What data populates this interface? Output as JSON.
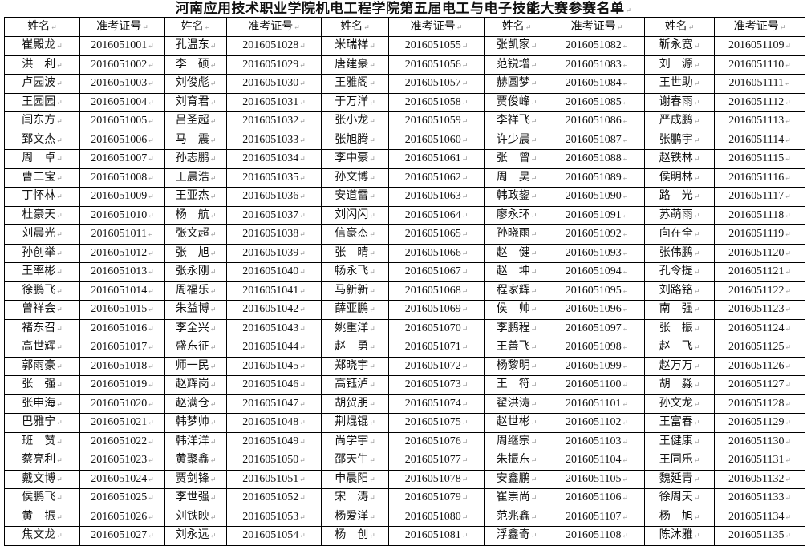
{
  "title": "河南应用技术职业学院机电工程学院第五届电工与电子技能大赛参赛名单",
  "headers": {
    "name": "姓名",
    "id": "准考证号"
  },
  "groups": [
    {
      "names": [
        "崔殿龙",
        "洪　利",
        "卢园波",
        "王园园",
        "闫东方",
        "郅文杰",
        "周　卓",
        "曹二宝",
        "丁怀林",
        "杜豪天",
        "刘晨光",
        "孙创举",
        "王率彬",
        "徐鹏飞",
        "曾祥会",
        "褚东召",
        "高世辉",
        "郭雨豪",
        "张　强",
        "张申海",
        "巴雅宁",
        "班　赞",
        "蔡亮利",
        "戴文博",
        "侯鹏飞",
        "黄　振",
        "焦文龙"
      ],
      "ids": [
        "2016051001",
        "2016051002",
        "2016051003",
        "2016051004",
        "2016051005",
        "2016051006",
        "2016051007",
        "2016051008",
        "2016051009",
        "2016051010",
        "2016051011",
        "2016051012",
        "2016051013",
        "2016051014",
        "2016051015",
        "2016051016",
        "2016051017",
        "2016051018",
        "2016051019",
        "2016051020",
        "2016051021",
        "2016051022",
        "2016051023",
        "2016051024",
        "2016051025",
        "2016051026",
        "2016051027"
      ]
    },
    {
      "names": [
        "孔温东",
        "李　硕",
        "刘俊彪",
        "刘育君",
        "吕圣超",
        "马　震",
        "孙志鹏",
        "王晨浩",
        "王亚杰",
        "杨　航",
        "张文超",
        "张　旭",
        "张永刚",
        "周福乐",
        "朱益博",
        "李全兴",
        "盛东征",
        "师一民",
        "赵辉岗",
        "赵满仓",
        "韩梦帅",
        "韩洋洋",
        "黄聚鑫",
        "贾剑锋",
        "李世强",
        "刘铁映",
        "刘永远"
      ],
      "ids": [
        "2016051028",
        "2016051029",
        "2016051030",
        "2016051031",
        "2016051032",
        "2016051033",
        "2016051034",
        "2016051035",
        "2016051036",
        "2016051037",
        "2016051038",
        "2016051039",
        "2016051040",
        "2016051041",
        "2016051042",
        "2016051043",
        "2016051044",
        "2016051045",
        "2016051046",
        "2016051047",
        "2016051048",
        "2016051049",
        "2016051050",
        "2016051051",
        "2016051052",
        "2016051053",
        "2016051054"
      ]
    },
    {
      "names": [
        "米瑞祥",
        "唐建豪",
        "王雅阁",
        "于万洋",
        "张小龙",
        "张旭腾",
        "李中豪",
        "孙文博",
        "安道雷",
        "刘闪闪",
        "信豪杰",
        "张　晴",
        "畅永飞",
        "马新新",
        "薛亚鹏",
        "姚重洋",
        "赵　勇",
        "郑晓宇",
        "高钰泸",
        "胡贺朋",
        "荆焜锟",
        "尚学宇",
        "邵天牛",
        "申晨阳",
        "宋　涛",
        "杨爱洋",
        "杨　创"
      ],
      "ids": [
        "2016051055",
        "2016051056",
        "2016051057",
        "2016051058",
        "2016051059",
        "2016051060",
        "2016051061",
        "2016051062",
        "2016051063",
        "2016051064",
        "2016051065",
        "2016051066",
        "2016051067",
        "2016051068",
        "2016051069",
        "2016051070",
        "2016051071",
        "2016051072",
        "2016051073",
        "2016051074",
        "2016051075",
        "2016051076",
        "2016051077",
        "2016051078",
        "2016051079",
        "2016051080",
        "2016051081"
      ]
    },
    {
      "names": [
        "张凯家",
        "范锐增",
        "赫圆梦",
        "贾俊峰",
        "李祥飞",
        "许少晨",
        "张　曾",
        "周　昊",
        "韩政鋆",
        "廖永环",
        "孙晓雨",
        "赵　健",
        "赵　坤",
        "程家辉",
        "侯　帅",
        "李鹏程",
        "王善飞",
        "杨黎明",
        "王　符",
        "翟洪涛",
        "赵世彬",
        "周继宗",
        "朱振东",
        "安鑫鹏",
        "崔崇尚",
        "范兆鑫",
        "浮鑫奇"
      ],
      "ids": [
        "2016051082",
        "2016051083",
        "2016051084",
        "2016051085",
        "2016051086",
        "2016051087",
        "2016051088",
        "2016051089",
        "2016051090",
        "2016051091",
        "2016051092",
        "2016051093",
        "2016051094",
        "2016051095",
        "2016051096",
        "2016051097",
        "2016051098",
        "2016051099",
        "2016051100",
        "2016051101",
        "2016051102",
        "2016051103",
        "2016051104",
        "2016051105",
        "2016051106",
        "2016051107",
        "2016051108"
      ]
    },
    {
      "names": [
        "靳永宽",
        "刘　源",
        "王世助",
        "谢春雨",
        "严成鹏",
        "张鹏宇",
        "赵铁林",
        "侯明林",
        "路　光",
        "苏萌雨",
        "向在全",
        "张伟鹏",
        "孔令提",
        "刘路铭",
        "南　强",
        "张　振",
        "赵　飞",
        "赵万万",
        "胡　淼",
        "孙文龙",
        "王富春",
        "王健康",
        "王同乐",
        "魏延青",
        "徐周天",
        "杨　旭",
        "陈沐雅"
      ],
      "ids": [
        "2016051109",
        "2016051110",
        "2016051111",
        "2016051112",
        "2016051113",
        "2016051114",
        "2016051115",
        "2016051116",
        "2016051117",
        "2016051118",
        "2016051119",
        "2016051120",
        "2016051121",
        "2016051122",
        "2016051123",
        "2016051124",
        "2016051125",
        "2016051126",
        "2016051127",
        "2016051128",
        "2016051129",
        "2016051130",
        "2016051131",
        "2016051132",
        "2016051133",
        "2016051134",
        "2016051135"
      ]
    }
  ]
}
